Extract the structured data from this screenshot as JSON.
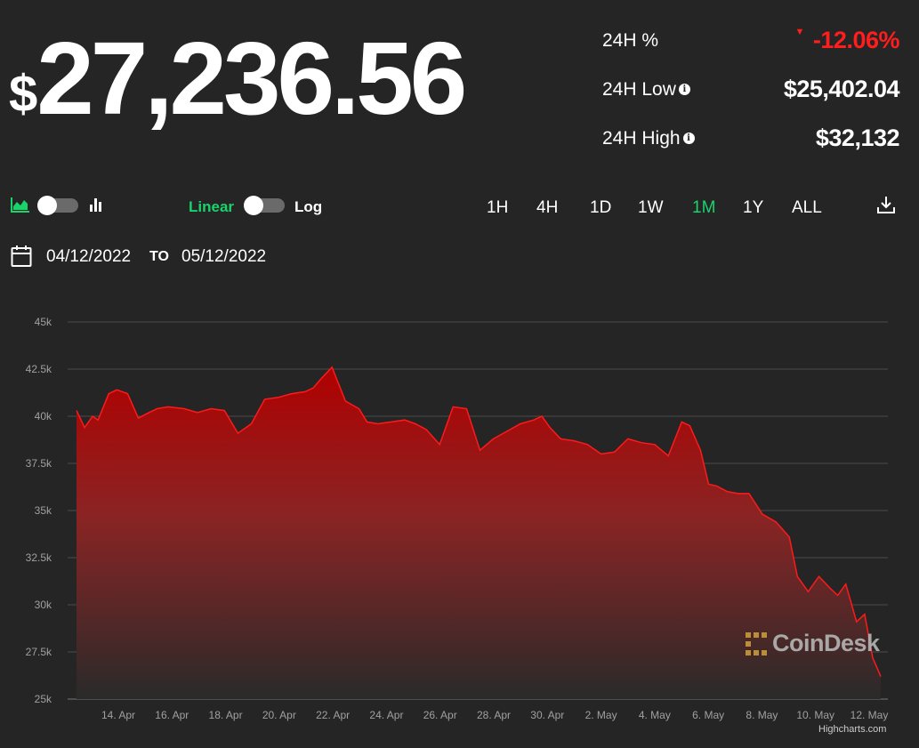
{
  "header": {
    "currency_symbol": "$",
    "price": "27,236.56"
  },
  "stats": [
    {
      "label": "24H %",
      "value": "-12.06%",
      "negative": true,
      "info": false
    },
    {
      "label": "24H Low",
      "value": "$25,402.04",
      "negative": false,
      "info": true
    },
    {
      "label": "24H High",
      "value": "$32,132",
      "negative": false,
      "info": true
    }
  ],
  "controls": {
    "scale_linear": "Linear",
    "scale_log": "Log",
    "ranges": [
      "1H",
      "4H",
      "1D",
      "1W",
      "1M",
      "1Y",
      "ALL"
    ],
    "active_range": "1M"
  },
  "dates": {
    "from": "04/12/2022",
    "to_label": "TO",
    "to": "05/12/2022"
  },
  "watermark": "CoinDesk",
  "credit": "Highcharts.com",
  "colors": {
    "background": "#252525",
    "accent_green": "#19d36b",
    "negative_red": "#ff1d1d",
    "line": "#ff1a1a"
  },
  "chart_data": {
    "type": "area",
    "title": "",
    "xlabel": "",
    "ylabel": "",
    "ylim": [
      25000,
      45000
    ],
    "y_ticks": [
      "25k",
      "27.5k",
      "30k",
      "32.5k",
      "35k",
      "37.5k",
      "40k",
      "42.5k",
      "45k"
    ],
    "x_ticks": [
      "14. Apr",
      "16. Apr",
      "18. Apr",
      "20. Apr",
      "22. Apr",
      "24. Apr",
      "26. Apr",
      "28. Apr",
      "30. Apr",
      "2. May",
      "4. May",
      "6. May",
      "8. May",
      "10. May",
      "12. May"
    ],
    "x_days": [
      0,
      0.3,
      0.6,
      0.8,
      1.2,
      1.5,
      1.9,
      2.3,
      2.7,
      3.0,
      3.4,
      4.0,
      4.5,
      5.0,
      5.5,
      6.0,
      6.5,
      7.0,
      7.5,
      8.0,
      8.5,
      8.8,
      9.1,
      9.5,
      10.0,
      10.5,
      10.8,
      11.2,
      11.7,
      12.2,
      12.6,
      13.0,
      13.5,
      14.0,
      14.5,
      15.0,
      15.5,
      16.0,
      16.5,
      17.0,
      17.3,
      17.6,
      18.0,
      18.5,
      19.0,
      19.5,
      20.0,
      20.5,
      21.0,
      21.5,
      22.0,
      22.5,
      22.8,
      23.2,
      23.5,
      23.8,
      24.2,
      24.6,
      25.0,
      25.5,
      26.0,
      26.5,
      26.8,
      27.2,
      27.6,
      28.0,
      28.3,
      28.6,
      29.0,
      29.3,
      29.6,
      29.9
    ],
    "values": [
      40300,
      39400,
      40000,
      39800,
      41200,
      41400,
      41200,
      39900,
      40200,
      40400,
      40500,
      40400,
      40200,
      40400,
      40300,
      39100,
      39600,
      40900,
      41000,
      41200,
      41300,
      41500,
      42000,
      42600,
      40800,
      40400,
      39700,
      39600,
      39700,
      39800,
      39600,
      39300,
      38500,
      40500,
      40400,
      38200,
      38800,
      39200,
      39600,
      39800,
      40000,
      39400,
      38800,
      38700,
      38500,
      38000,
      38100,
      38800,
      38600,
      38500,
      37900,
      39700,
      39500,
      38200,
      36400,
      36300,
      36000,
      35900,
      35900,
      34800,
      34400,
      33600,
      31500,
      30700,
      31500,
      30900,
      30500,
      31100,
      29100,
      29500,
      27200,
      26200
    ]
  }
}
